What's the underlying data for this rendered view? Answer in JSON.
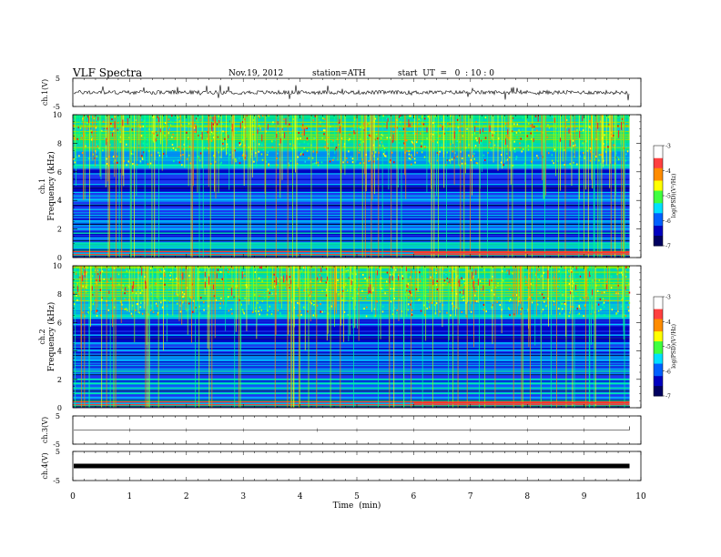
{
  "header": {
    "title": "VLF  Spectra",
    "date": "Nov.19, 2012",
    "station": "station=ATH",
    "start_ut": "start  UT  =   0  : 10 : 0"
  },
  "chart_data": [
    {
      "type": "line",
      "panel": "ch1-waveform",
      "ylabel": "ch.1(V)",
      "yticks": [
        "5",
        "-5"
      ],
      "ylim": [
        -5,
        5
      ],
      "baseline": 0,
      "color": "#000000"
    },
    {
      "type": "heatmap",
      "panel": "ch1-spectrogram",
      "ylabel": "ch.1\nFrequency (kHz)",
      "ylabel_ch": "ch.1",
      "ylabel_freq": "Frequency  (kHz)",
      "yticks": [
        "0",
        "2",
        "4",
        "6",
        "8",
        "10"
      ],
      "ylim_khz": [
        0,
        10
      ],
      "colorbar": {
        "label": "log(PSD)(V²/Hz)",
        "ticks": [
          "-3",
          "-4",
          "-5",
          "-6",
          "-7"
        ],
        "range": [
          -7,
          -3
        ],
        "colors": [
          "#00008b",
          "#0000ff",
          "#00bfff",
          "#00ff7f",
          "#ffff00",
          "#ff7f00",
          "#ff0000",
          "#ffffff"
        ]
      }
    },
    {
      "type": "heatmap",
      "panel": "ch2-spectrogram",
      "ylabel_ch": "ch.2",
      "ylabel_freq": "Frequency  (kHz)",
      "yticks": [
        "0",
        "2",
        "4",
        "6",
        "8",
        "10"
      ],
      "ylim_khz": [
        0,
        10
      ],
      "colorbar": {
        "label": "log(PSD)(V²/Hz)",
        "ticks": [
          "-3",
          "-4",
          "-5",
          "-6",
          "-7"
        ],
        "range": [
          -7,
          -3
        ]
      }
    },
    {
      "type": "line",
      "panel": "ch3-waveform",
      "ylabel": "ch.3(V)",
      "yticks": [
        "5",
        "-5"
      ],
      "ylim": [
        -5,
        5
      ],
      "baseline": 0
    },
    {
      "type": "line",
      "panel": "ch4-waveform",
      "ylabel": "ch.4(V)",
      "yticks": [
        "5",
        "-5"
      ],
      "ylim": [
        -5,
        5
      ],
      "baseline": 0
    }
  ],
  "xaxis": {
    "label": "Time  (min)",
    "ticks": [
      "0",
      "1",
      "2",
      "3",
      "4",
      "5",
      "6",
      "7",
      "8",
      "9",
      "10"
    ],
    "xlim": [
      0,
      10
    ],
    "data_end": 9.8
  }
}
